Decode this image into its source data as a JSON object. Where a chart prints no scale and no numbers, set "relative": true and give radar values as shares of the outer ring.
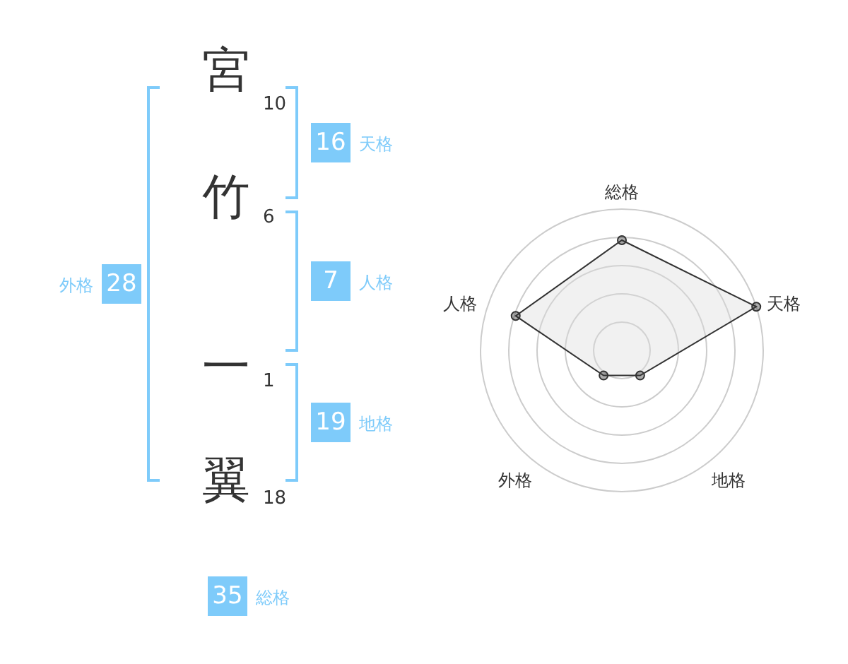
{
  "chart_data": [
    {
      "type": "other",
      "color": "#7ecbfa",
      "annotations": [
        "宮",
        "10",
        "竹",
        "6",
        "一",
        "1",
        "翼",
        "18",
        "16",
        "天格",
        "7",
        "人格",
        "19",
        "地格",
        "28",
        "外格",
        "35",
        "総格"
      ]
    },
    {
      "type": "radar",
      "relative": true,
      "categories": [
        "総格",
        "天格",
        "地格",
        "外格",
        "人格"
      ],
      "series": [
        {
          "color": "#333333",
          "values": [
            0.78,
            1.0,
            0.22,
            0.22,
            0.79
          ]
        }
      ]
    }
  ]
}
